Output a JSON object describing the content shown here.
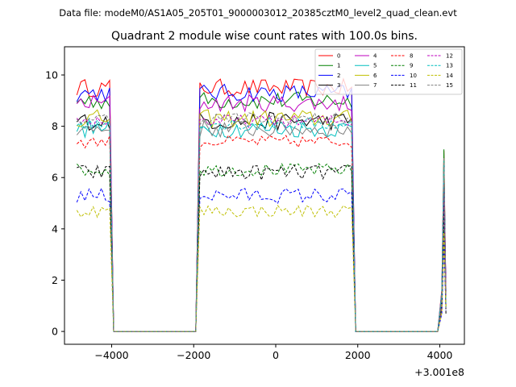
{
  "suptitle": "Data file: modeM0/AS1A05_205T01_9000003012_20385cztM0_level2_quad_clean.evt",
  "title": "Quadrant 2 module wise count rates with 100.0s bins.",
  "offset_label": "+3.001e8",
  "chart_data": {
    "type": "line",
    "title": "Quadrant 2 module wise count rates with 100.0s bins.",
    "xlabel": "",
    "ylabel": "",
    "x_offset": 300100000,
    "xlim": [
      -5150,
      4600
    ],
    "ylim": [
      -0.5,
      11.1
    ],
    "xticks": [
      -4000,
      -2000,
      0,
      2000,
      4000
    ],
    "xtick_labels": [
      "−4000",
      "−2000",
      "0",
      "2000",
      "4000"
    ],
    "yticks": [
      0,
      2,
      4,
      6,
      8,
      10
    ],
    "ytick_labels": [
      "0",
      "2",
      "4",
      "6",
      "8",
      "10"
    ],
    "legend_position": "top-right",
    "legend_columns": 4,
    "segments": [
      {
        "x_start": -4850,
        "x_end": -4050,
        "step": 100,
        "shape": "on"
      },
      {
        "x_start": -3950,
        "x_end": -1950,
        "step": 100,
        "shape": "zero"
      },
      {
        "x_start": -1850,
        "x_end": 1850,
        "step": 100,
        "shape": "on"
      },
      {
        "x_start": 1950,
        "x_end": 3950,
        "step": 100,
        "shape": "zero"
      },
      {
        "x_start": 4050,
        "x_end": 4150,
        "step": 50,
        "shape": "spike"
      }
    ],
    "series": [
      {
        "name": "0",
        "color": "#ff0000",
        "dash": "solid",
        "level": 9.5,
        "amp": 0.35
      },
      {
        "name": "1",
        "color": "#008000",
        "dash": "solid",
        "level": 9.0,
        "amp": 0.35
      },
      {
        "name": "2",
        "color": "#0000ff",
        "dash": "solid",
        "level": 9.3,
        "amp": 0.35
      },
      {
        "name": "3",
        "color": "#000000",
        "dash": "solid",
        "level": 8.2,
        "amp": 0.35
      },
      {
        "name": "4",
        "color": "#bf00bf",
        "dash": "solid",
        "level": 8.9,
        "amp": 0.35
      },
      {
        "name": "5",
        "color": "#00bfbf",
        "dash": "solid",
        "level": 7.9,
        "amp": 0.35
      },
      {
        "name": "6",
        "color": "#bfbf00",
        "dash": "solid",
        "level": 8.3,
        "amp": 0.35
      },
      {
        "name": "7",
        "color": "#808080",
        "dash": "solid",
        "level": 7.9,
        "amp": 0.35
      },
      {
        "name": "8",
        "color": "#ff0000",
        "dash": "dashed",
        "level": 7.4,
        "amp": 0.25
      },
      {
        "name": "9",
        "color": "#008000",
        "dash": "dashed",
        "level": 6.3,
        "amp": 0.25
      },
      {
        "name": "10",
        "color": "#0000ff",
        "dash": "dashed",
        "level": 5.3,
        "amp": 0.3
      },
      {
        "name": "11",
        "color": "#000000",
        "dash": "dashed",
        "level": 6.2,
        "amp": 0.3
      },
      {
        "name": "12",
        "color": "#bf00bf",
        "dash": "dashed",
        "level": 8.2,
        "amp": 0.25
      },
      {
        "name": "13",
        "color": "#00bfbf",
        "dash": "dashed",
        "level": 8.1,
        "amp": 0.25
      },
      {
        "name": "14",
        "color": "#bfbf00",
        "dash": "dashed",
        "level": 4.7,
        "amp": 0.25
      },
      {
        "name": "15",
        "color": "#808080",
        "dash": "dashed",
        "level": 8.3,
        "amp": 0.25
      }
    ]
  }
}
